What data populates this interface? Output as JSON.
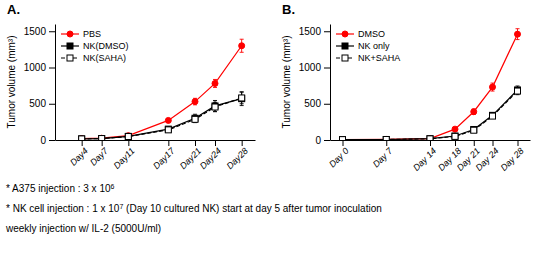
{
  "chart_data": [
    {
      "type": "line",
      "title": "A.",
      "y_label": "Tumor volume (mm³)",
      "x": [
        4,
        7,
        11,
        17,
        21,
        24,
        28
      ],
      "xlim": [
        0,
        30
      ],
      "xticks": [
        {
          "value": 4,
          "label": "Day4"
        },
        {
          "value": 7,
          "label": "Day7"
        },
        {
          "value": 11,
          "label": "Day11"
        },
        {
          "value": 17,
          "label": "Day17"
        },
        {
          "value": 21,
          "label": "Day21"
        },
        {
          "value": 24,
          "label": "Day24"
        },
        {
          "value": 28,
          "label": "Day28"
        }
      ],
      "ylim": [
        0,
        1600
      ],
      "yticks": [
        0,
        500,
        1000,
        1500
      ],
      "legend": "upper-left",
      "series": [
        {
          "name": "PBS",
          "color": "#FF0000",
          "marker": "circle",
          "line_style": "solid",
          "values": [
            20,
            25,
            60,
            270,
            530,
            780,
            1300
          ],
          "errors": [
            5,
            4,
            8,
            25,
            45,
            55,
            90
          ]
        },
        {
          "name": "NK(DMSO)",
          "color": "#000000",
          "marker": "square",
          "line_style": "solid",
          "values": [
            15,
            20,
            50,
            150,
            300,
            470,
            570
          ],
          "errors": [
            4,
            4,
            10,
            25,
            55,
            75,
            95
          ]
        },
        {
          "name": "NK(SAHA)",
          "color": "#000000",
          "marker": "square-open",
          "line_style": "dashed",
          "values": [
            15,
            20,
            48,
            140,
            285,
            455,
            580
          ],
          "errors": [
            4,
            4,
            10,
            20,
            45,
            65,
            80
          ]
        }
      ],
      "annotations": [
        "* A375 injection : 3 x 10",
        "6",
        "* NK cell injection : 1 x 10",
        "7",
        " (Day 10 cultured NK) start at day 5 after tumor inoculation",
        "weekly injection w/ IL-2 (5000U/ml)"
      ]
    },
    {
      "type": "line",
      "title": "B.",
      "y_label": "Tumor volume (mm³)",
      "x": [
        0,
        7,
        14,
        18,
        21,
        24,
        28
      ],
      "xlim": [
        -2,
        30
      ],
      "xticks": [
        {
          "value": 0,
          "label": "Day 0"
        },
        {
          "value": 7,
          "label": "Day 7"
        },
        {
          "value": 14,
          "label": "Day 14"
        },
        {
          "value": 18,
          "label": "Day 18"
        },
        {
          "value": 21,
          "label": "Day 21"
        },
        {
          "value": 24,
          "label": "Day 24"
        },
        {
          "value": 28,
          "label": "Day 28"
        }
      ],
      "ylim": [
        0,
        1600
      ],
      "yticks": [
        0,
        500,
        1000,
        1500
      ],
      "legend": "upper-left",
      "series": [
        {
          "name": "DMSO",
          "color": "#FF0000",
          "marker": "circle",
          "line_style": "solid",
          "values": [
            5,
            8,
            20,
            150,
            390,
            730,
            1460
          ],
          "errors": [
            2,
            2,
            4,
            18,
            38,
            55,
            75
          ]
        },
        {
          "name": "NK only",
          "color": "#000000",
          "marker": "square",
          "line_style": "solid",
          "values": [
            5,
            7,
            18,
            55,
            145,
            340,
            690
          ],
          "errors": [
            2,
            2,
            4,
            8,
            18,
            35,
            55
          ]
        },
        {
          "name": "NK+SAHA",
          "color": "#000000",
          "marker": "square-open",
          "line_style": "dashed",
          "values": [
            5,
            7,
            16,
            50,
            135,
            330,
            675
          ],
          "errors": [
            2,
            2,
            4,
            8,
            18,
            30,
            50
          ]
        }
      ]
    }
  ]
}
